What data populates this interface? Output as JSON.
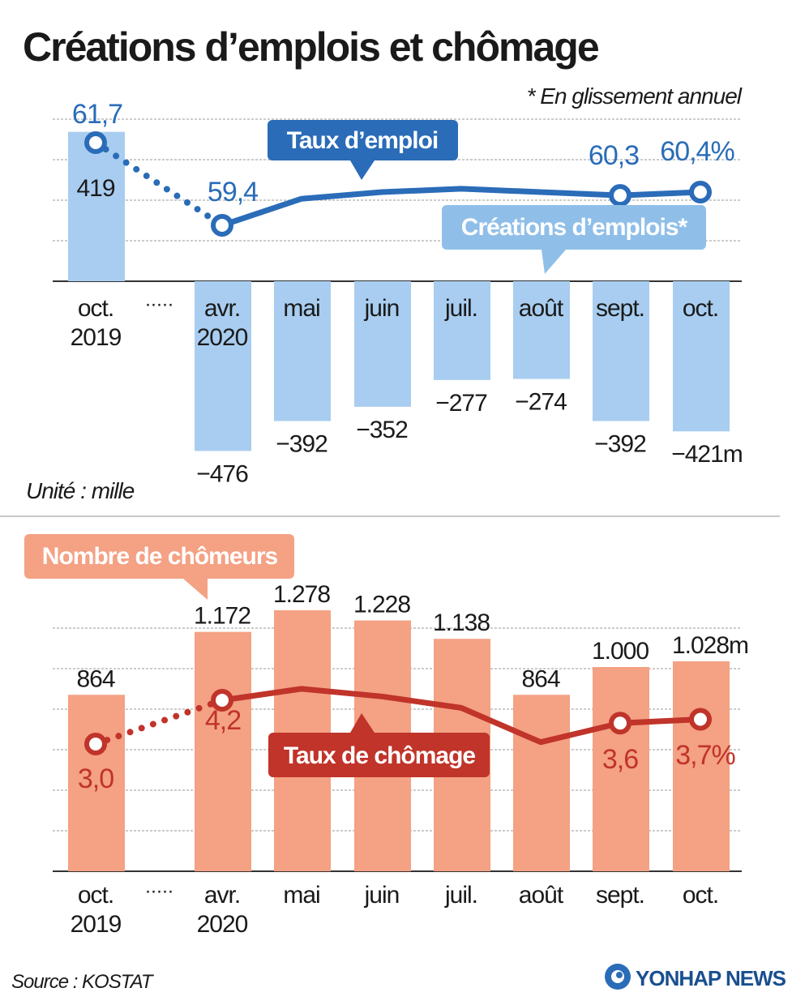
{
  "title": "Créations d’emplois et chômage",
  "colors": {
    "emp_bar": "#a8cdf0",
    "emp_line": "#2a6cb8",
    "emp_label_bg": "#2a6cb8",
    "creations_label_bg": "#8fbfe8",
    "unemp_bar": "#f4a184",
    "unemp_line": "#c0342a",
    "unemp_label_bg": "#f4a184",
    "unemp_rate_label_bg": "#c0342a",
    "grid": "#999999",
    "text": "#1a1a1a"
  },
  "chart_data": [
    {
      "type": "bar+line",
      "name": "employment",
      "note": "* En glissement annuel",
      "unit_label": "Unité : mille",
      "categories": [
        "oct.\n2019",
        "avr.\n2020",
        "mai",
        "juin",
        "juil.",
        "août",
        "sept.",
        "oct."
      ],
      "ellipsis": "·····",
      "bar_series": {
        "name": "Créations d’emplois*",
        "values": [
          419,
          -476,
          -392,
          -352,
          -277,
          -274,
          -392,
          -421
        ],
        "labels": [
          "419",
          "−476",
          "−392",
          "−352",
          "−277",
          "−274",
          "−392",
          "−421m"
        ],
        "ylim": [
          -500,
          500
        ]
      },
      "line_series": {
        "name": "Taux d’emploi",
        "values": [
          61.7,
          59.4,
          60.2,
          60.4,
          60.5,
          60.4,
          60.3,
          60.4
        ],
        "labels": [
          "61,7",
          "59,4",
          "",
          "",
          "",
          "",
          "60,3",
          "60,4%"
        ],
        "markers": [
          0,
          1,
          6,
          7
        ],
        "dotted_segment": [
          0,
          1
        ],
        "ylim": [
          57,
          63
        ]
      }
    },
    {
      "type": "bar+line",
      "name": "unemployment",
      "categories": [
        "oct.\n2019",
        "avr.\n2020",
        "mai",
        "juin",
        "juil.",
        "août",
        "sept.",
        "oct."
      ],
      "ellipsis": "·····",
      "bar_series": {
        "name": "Nombre de chômeurs",
        "values": [
          864,
          1172,
          1278,
          1228,
          1138,
          864,
          1000,
          1028
        ],
        "labels": [
          "864",
          "1.172",
          "1.278",
          "1.228",
          "1.138",
          "864",
          "1.000",
          "1.028m"
        ],
        "ylim": [
          0,
          1500
        ]
      },
      "line_series": {
        "name": "Taux de chômage",
        "values": [
          3.0,
          4.2,
          4.5,
          4.3,
          4.0,
          3.1,
          3.6,
          3.7
        ],
        "labels": [
          "3,0",
          "4,2",
          "",
          "",
          "",
          "",
          "3,6",
          "3,7%"
        ],
        "markers": [
          0,
          1,
          6,
          7
        ],
        "dotted_segment": [
          0,
          1
        ],
        "ylim": [
          1.5,
          7.5
        ]
      }
    }
  ],
  "footer": {
    "source": "Source : KOSTAT",
    "brand": "YONHAP NEWS"
  }
}
